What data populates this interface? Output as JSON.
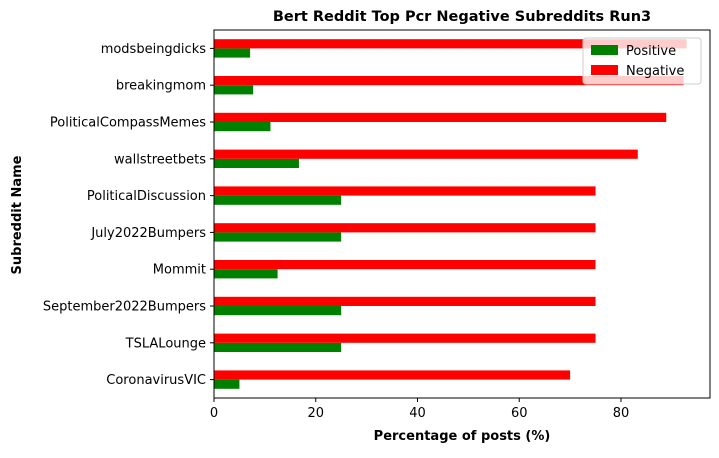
{
  "chart_data": {
    "type": "bar",
    "orientation": "horizontal",
    "title": "Bert Reddit Top Pcr Negative Subreddits Run3",
    "xlabel": "Percentage of posts (%)",
    "ylabel": "Subreddit Name",
    "categories": [
      "CoronavirusVIC",
      "TSLALounge",
      "September2022Bumpers",
      "Mommit",
      "July2022Bumpers",
      "PoliticalDiscussion",
      "wallstreetbets",
      "PoliticalCompassMemes",
      "breakingmom",
      "modsbeingdicks"
    ],
    "series": [
      {
        "name": "Positive",
        "color": "#008000",
        "values": [
          5.0,
          25.0,
          25.0,
          12.5,
          25.0,
          25.0,
          16.7,
          11.1,
          7.7,
          7.1
        ]
      },
      {
        "name": "Negative",
        "color": "#ff0000",
        "values": [
          70.0,
          75.0,
          75.0,
          75.0,
          75.0,
          75.0,
          83.3,
          88.9,
          92.3,
          92.9
        ]
      }
    ],
    "xlim": [
      0,
      97.5
    ],
    "xticks": [
      0,
      20,
      40,
      60,
      80
    ],
    "legend_position": "top-right",
    "grid": false
  }
}
